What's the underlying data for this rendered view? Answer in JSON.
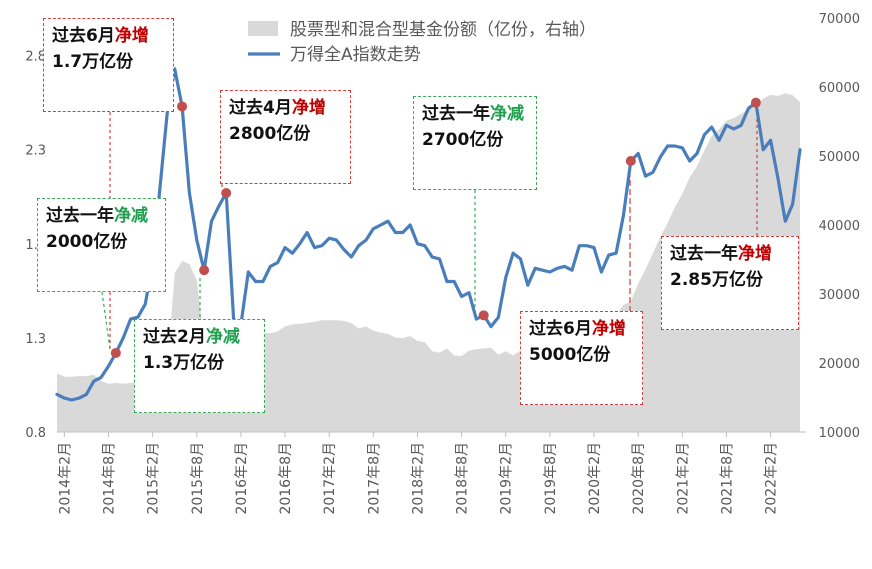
{
  "chart_data": {
    "type": "line+area",
    "legend": [
      {
        "label": "股票型和混合型基金份额（亿份，右轴）",
        "color": "#d9d9d9",
        "kind": "area"
      },
      {
        "label": "万得全A指数走势",
        "color": "#4a7ebb",
        "kind": "line"
      }
    ],
    "left_axis": {
      "ticks": [
        "0.8",
        "1.3",
        "1.8",
        "2.3",
        "2.8"
      ],
      "range": [
        0.8,
        3.0
      ]
    },
    "right_axis": {
      "ticks": [
        "10000",
        "20000",
        "30000",
        "40000",
        "50000",
        "60000",
        "70000"
      ],
      "range": [
        10000,
        70000
      ]
    },
    "x_ticks": [
      "2014年2月",
      "2014年8月",
      "2015年2月",
      "2015年8月",
      "2016年2月",
      "2016年8月",
      "2017年2月",
      "2017年8月",
      "2018年2月",
      "2018年8月",
      "2019年2月",
      "2019年8月",
      "2020年2月",
      "2020年8月",
      "2021年2月",
      "2021年8月",
      "2022年2月"
    ],
    "wind_a_index": [
      [
        "2014-01",
        1.0
      ],
      [
        "2014-02",
        0.98
      ],
      [
        "2014-03",
        0.97
      ],
      [
        "2014-04",
        0.98
      ],
      [
        "2014-05",
        1.0
      ],
      [
        "2014-06",
        1.07
      ],
      [
        "2014-07",
        1.09
      ],
      [
        "2014-08",
        1.15
      ],
      [
        "2014-09",
        1.22
      ],
      [
        "2014-10",
        1.3
      ],
      [
        "2014-11",
        1.4
      ],
      [
        "2014-12",
        1.41
      ],
      [
        "2015-01",
        1.48
      ],
      [
        "2015-02",
        1.7
      ],
      [
        "2015-03",
        2.1
      ],
      [
        "2015-04",
        2.5
      ],
      [
        "2015-05",
        2.73
      ],
      [
        "2015-06",
        2.53
      ],
      [
        "2015-07",
        2.07
      ],
      [
        "2015-08",
        1.82
      ],
      [
        "2015-09",
        1.66
      ],
      [
        "2015-10",
        1.92
      ],
      [
        "2015-11",
        2.0
      ],
      [
        "2015-12",
        2.07
      ],
      [
        "2016-01",
        1.4
      ],
      [
        "2016-02",
        1.37
      ],
      [
        "2016-03",
        1.65
      ],
      [
        "2016-04",
        1.6
      ],
      [
        "2016-05",
        1.6
      ],
      [
        "2016-06",
        1.68
      ],
      [
        "2016-07",
        1.7
      ],
      [
        "2016-08",
        1.78
      ],
      [
        "2016-09",
        1.75
      ],
      [
        "2016-10",
        1.8
      ],
      [
        "2016-11",
        1.86
      ],
      [
        "2016-12",
        1.78
      ],
      [
        "2017-01",
        1.79
      ],
      [
        "2017-02",
        1.83
      ],
      [
        "2017-03",
        1.82
      ],
      [
        "2017-04",
        1.77
      ],
      [
        "2017-05",
        1.73
      ],
      [
        "2017-06",
        1.79
      ],
      [
        "2017-07",
        1.82
      ],
      [
        "2017-08",
        1.88
      ],
      [
        "2017-09",
        1.9
      ],
      [
        "2017-10",
        1.92
      ],
      [
        "2017-11",
        1.86
      ],
      [
        "2017-12",
        1.86
      ],
      [
        "2018-01",
        1.9
      ],
      [
        "2018-02",
        1.8
      ],
      [
        "2018-03",
        1.79
      ],
      [
        "2018-04",
        1.73
      ],
      [
        "2018-05",
        1.72
      ],
      [
        "2018-06",
        1.6
      ],
      [
        "2018-07",
        1.6
      ],
      [
        "2018-08",
        1.52
      ],
      [
        "2018-09",
        1.54
      ],
      [
        "2018-10",
        1.4
      ],
      [
        "2018-11",
        1.42
      ],
      [
        "2018-12",
        1.36
      ],
      [
        "2019-01",
        1.41
      ],
      [
        "2019-02",
        1.62
      ],
      [
        "2019-03",
        1.75
      ],
      [
        "2019-04",
        1.72
      ],
      [
        "2019-05",
        1.58
      ],
      [
        "2019-06",
        1.67
      ],
      [
        "2019-07",
        1.66
      ],
      [
        "2019-08",
        1.65
      ],
      [
        "2019-09",
        1.67
      ],
      [
        "2019-10",
        1.68
      ],
      [
        "2019-11",
        1.66
      ],
      [
        "2019-12",
        1.79
      ],
      [
        "2020-01",
        1.79
      ],
      [
        "2020-02",
        1.78
      ],
      [
        "2020-03",
        1.65
      ],
      [
        "2020-04",
        1.74
      ],
      [
        "2020-05",
        1.75
      ],
      [
        "2020-06",
        1.95
      ],
      [
        "2020-07",
        2.24
      ],
      [
        "2020-08",
        2.28
      ],
      [
        "2020-09",
        2.16
      ],
      [
        "2020-10",
        2.18
      ],
      [
        "2020-11",
        2.26
      ],
      [
        "2020-12",
        2.32
      ],
      [
        "2021-01",
        2.32
      ],
      [
        "2021-02",
        2.31
      ],
      [
        "2021-03",
        2.24
      ],
      [
        "2021-04",
        2.28
      ],
      [
        "2021-05",
        2.38
      ],
      [
        "2021-06",
        2.42
      ],
      [
        "2021-07",
        2.35
      ],
      [
        "2021-08",
        2.43
      ],
      [
        "2021-09",
        2.41
      ],
      [
        "2021-10",
        2.43
      ],
      [
        "2021-11",
        2.52
      ],
      [
        "2021-12",
        2.55
      ],
      [
        "2022-01",
        2.3
      ],
      [
        "2022-02",
        2.35
      ],
      [
        "2022-03",
        2.15
      ],
      [
        "2022-04",
        1.92
      ],
      [
        "2022-05",
        2.01
      ],
      [
        "2022-06",
        2.3
      ]
    ],
    "fund_shares": [
      [
        "2014-01",
        18500
      ],
      [
        "2014-02",
        18000
      ],
      [
        "2014-03",
        18000
      ],
      [
        "2014-04",
        18100
      ],
      [
        "2014-05",
        18100
      ],
      [
        "2014-06",
        18300
      ],
      [
        "2014-07",
        17400
      ],
      [
        "2014-08",
        17000
      ],
      [
        "2014-09",
        17100
      ],
      [
        "2014-10",
        17000
      ],
      [
        "2014-11",
        17100
      ],
      [
        "2014-12",
        17300
      ],
      [
        "2015-01",
        17800
      ],
      [
        "2015-02",
        17300
      ],
      [
        "2015-03",
        17700
      ],
      [
        "2015-04",
        19500
      ],
      [
        "2015-05",
        33000
      ],
      [
        "2015-06",
        34800
      ],
      [
        "2015-07",
        34300
      ],
      [
        "2015-08",
        32000
      ],
      [
        "2015-09",
        23000
      ],
      [
        "2015-10",
        22400
      ],
      [
        "2015-11",
        22000
      ],
      [
        "2015-12",
        22600
      ],
      [
        "2016-01",
        24300
      ],
      [
        "2016-02",
        24200
      ],
      [
        "2016-03",
        24100
      ],
      [
        "2016-04",
        24300
      ],
      [
        "2016-05",
        24400
      ],
      [
        "2016-06",
        24300
      ],
      [
        "2016-07",
        24600
      ],
      [
        "2016-08",
        25300
      ],
      [
        "2016-09",
        25600
      ],
      [
        "2016-10",
        25700
      ],
      [
        "2016-11",
        25800
      ],
      [
        "2016-12",
        26000
      ],
      [
        "2017-01",
        26200
      ],
      [
        "2017-02",
        26200
      ],
      [
        "2017-03",
        26200
      ],
      [
        "2017-04",
        26100
      ],
      [
        "2017-05",
        25800
      ],
      [
        "2017-06",
        25000
      ],
      [
        "2017-07",
        25300
      ],
      [
        "2017-08",
        24700
      ],
      [
        "2017-09",
        24400
      ],
      [
        "2017-10",
        24200
      ],
      [
        "2017-11",
        23700
      ],
      [
        "2017-12",
        23600
      ],
      [
        "2018-01",
        23900
      ],
      [
        "2018-02",
        23200
      ],
      [
        "2018-03",
        23000
      ],
      [
        "2018-04",
        21700
      ],
      [
        "2018-05",
        21500
      ],
      [
        "2018-06",
        22100
      ],
      [
        "2018-07",
        21100
      ],
      [
        "2018-08",
        21000
      ],
      [
        "2018-09",
        21800
      ],
      [
        "2018-10",
        22000
      ],
      [
        "2018-11",
        22100
      ],
      [
        "2018-12",
        22200
      ],
      [
        "2019-01",
        21200
      ],
      [
        "2019-02",
        21700
      ],
      [
        "2019-03",
        21100
      ],
      [
        "2019-04",
        21800
      ],
      [
        "2019-05",
        21700
      ],
      [
        "2019-06",
        22600
      ],
      [
        "2019-07",
        22200
      ],
      [
        "2019-08",
        22700
      ],
      [
        "2019-09",
        22800
      ],
      [
        "2019-10",
        23300
      ],
      [
        "2019-11",
        23300
      ],
      [
        "2019-12",
        24500
      ],
      [
        "2020-01",
        24600
      ],
      [
        "2020-02",
        24800
      ],
      [
        "2020-03",
        25600
      ],
      [
        "2020-04",
        25900
      ],
      [
        "2020-05",
        27000
      ],
      [
        "2020-06",
        28400
      ],
      [
        "2020-07",
        28900
      ],
      [
        "2020-08",
        31500
      ],
      [
        "2020-09",
        33600
      ],
      [
        "2020-10",
        35900
      ],
      [
        "2020-11",
        38200
      ],
      [
        "2020-12",
        40300
      ],
      [
        "2021-01",
        42600
      ],
      [
        "2021-02",
        44500
      ],
      [
        "2021-03",
        46900
      ],
      [
        "2021-04",
        48500
      ],
      [
        "2021-05",
        50800
      ],
      [
        "2021-06",
        52900
      ],
      [
        "2021-07",
        53900
      ],
      [
        "2021-08",
        55100
      ],
      [
        "2021-09",
        55500
      ],
      [
        "2021-10",
        56100
      ],
      [
        "2021-11",
        56800
      ],
      [
        "2021-12",
        57200
      ],
      [
        "2022-01",
        58300
      ],
      [
        "2022-02",
        58900
      ],
      [
        "2022-03",
        58700
      ],
      [
        "2022-04",
        59100
      ],
      [
        "2022-05",
        58800
      ],
      [
        "2022-06",
        57800
      ]
    ],
    "markers": [
      {
        "date": "2014-09",
        "value": 1.22,
        "color": "#c0504d"
      },
      {
        "date": "2015-06",
        "value": 2.53,
        "color": "#c0504d"
      },
      {
        "date": "2015-09",
        "value": 1.66,
        "color": "#c0504d"
      },
      {
        "date": "2015-12",
        "value": 2.07,
        "color": "#c0504d"
      },
      {
        "date": "2018-11",
        "value": 1.42,
        "color": "#c0504d"
      },
      {
        "date": "2020-07",
        "value": 2.24,
        "color": "#c0504d"
      },
      {
        "date": "2021-12",
        "value": 2.55,
        "color": "#c0504d"
      }
    ],
    "annotations": [
      {
        "style": "red",
        "parts": [
          {
            "t": "过去6月"
          },
          {
            "t": "净",
            "hl": "red"
          },
          {
            "t": "增",
            "hl": "red"
          },
          {
            "t": "1.7万亿份"
          }
        ]
      },
      {
        "style": "red",
        "parts": [
          {
            "t": "过去4月"
          },
          {
            "t": "净",
            "hl": "red"
          },
          {
            "t": "增",
            "hl": "red"
          },
          {
            "t": "2800亿份"
          }
        ]
      },
      {
        "style": "green",
        "parts": [
          {
            "t": "过去一年"
          },
          {
            "t": "净减",
            "hl": "green"
          },
          {
            "t": "2000亿份"
          }
        ]
      },
      {
        "style": "green",
        "parts": [
          {
            "t": "过去2月"
          },
          {
            "t": "净",
            "hl": "green"
          },
          {
            "t": "减",
            "hl": "green"
          },
          {
            "t": "1.3万亿份"
          }
        ]
      },
      {
        "style": "green",
        "parts": [
          {
            "t": "过去一年"
          },
          {
            "t": "净减",
            "hl": "green"
          },
          {
            "t": "2700亿份"
          }
        ]
      },
      {
        "style": "red",
        "parts": [
          {
            "t": "过去6月"
          },
          {
            "t": "净增",
            "hl": "red"
          },
          {
            "t": "5000亿份"
          }
        ]
      },
      {
        "style": "red",
        "parts": [
          {
            "t": "过去一年"
          },
          {
            "t": "净增",
            "hl": "red"
          },
          {
            "t": "2.85万亿份"
          }
        ]
      }
    ]
  }
}
